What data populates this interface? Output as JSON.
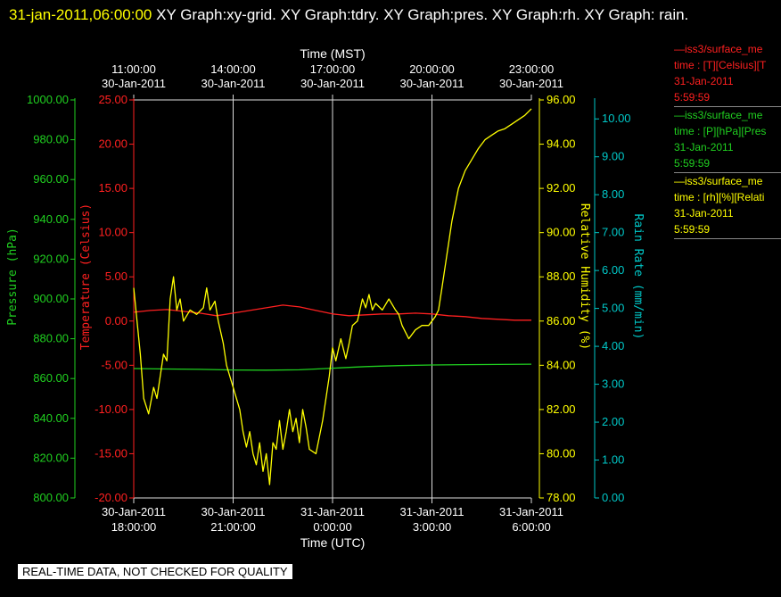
{
  "header": {
    "timestamp": "31-jan-2011,06:00:00",
    "text": "XY Graph:xy-grid.  XY Graph:tdry.  XY Graph:pres.  XY Graph:rh.  XY Graph: rain."
  },
  "legend": [
    {
      "line1": "—iss3/surface_me",
      "line2": "time : [T][Celsius][T",
      "line3": "31-Jan-2011",
      "line4": "5:59:59",
      "color": "#ff2020"
    },
    {
      "line1": "—iss3/surface_me",
      "line2": "time : [P][hPa][Pres",
      "line3": "31-Jan-2011",
      "line4": "5:59:59",
      "color": "#20d020"
    },
    {
      "line1": "—iss3/surface_me",
      "line2": "time : [rh][%][Relati",
      "line3": "31-Jan-2011",
      "line4": "5:59:59",
      "color": "#ffff00"
    }
  ],
  "notice": "REAL-TIME DATA, NOT CHECKED FOR QUALITY",
  "chart_data": {
    "type": "line",
    "top_axis": {
      "title": "Time (MST)",
      "ticks": [
        {
          "time": "11:00:00",
          "date": "30-Jan-2011"
        },
        {
          "time": "14:00:00",
          "date": "30-Jan-2011"
        },
        {
          "time": "17:00:00",
          "date": "30-Jan-2011"
        },
        {
          "time": "20:00:00",
          "date": "30-Jan-2011"
        },
        {
          "time": "23:00:00",
          "date": "30-Jan-2011"
        }
      ]
    },
    "bottom_axis": {
      "title": "Time (UTC)",
      "range_hours": [
        0,
        12
      ],
      "tick_hours": [
        0,
        3,
        6,
        9,
        12
      ],
      "ticks": [
        {
          "date": "30-Jan-2011",
          "time": "18:00:00"
        },
        {
          "date": "30-Jan-2011",
          "time": "21:00:00"
        },
        {
          "date": "31-Jan-2011",
          "time": "0:00:00"
        },
        {
          "date": "31-Jan-2011",
          "time": "3:00:00"
        },
        {
          "date": "31-Jan-2011",
          "time": "6:00:00"
        }
      ]
    },
    "axes": {
      "pressure": {
        "label": "Pressure (hPa)",
        "range": [
          800,
          1000
        ],
        "ticks": [
          "800.00",
          "820.00",
          "840.00",
          "860.00",
          "880.00",
          "900.00",
          "920.00",
          "940.00",
          "960.00",
          "980.00",
          "1000.00"
        ],
        "color": "#20d020"
      },
      "temperature": {
        "label": "Temperature (Celsius)",
        "range": [
          -20,
          25
        ],
        "ticks": [
          "-20.00",
          "-15.00",
          "-10.00",
          "-5.00",
          "0.00",
          "5.00",
          "10.00",
          "15.00",
          "20.00",
          "25.00"
        ],
        "color": "#ff2020"
      },
      "rh": {
        "label": "Relative Humidity (%)",
        "range": [
          78,
          96
        ],
        "ticks": [
          "78.00",
          "80.00",
          "82.00",
          "84.00",
          "86.00",
          "88.00",
          "90.00",
          "92.00",
          "94.00",
          "96.00"
        ],
        "color": "#ffff00"
      },
      "rain": {
        "label": "Rain Rate (mm/min)",
        "range": [
          0,
          10.5
        ],
        "ticks": [
          "0.00",
          "1.00",
          "2.00",
          "3.00",
          "4.00",
          "5.00",
          "6.00",
          "7.00",
          "8.00",
          "9.00",
          "10.00"
        ],
        "color": "#00c8c8"
      }
    },
    "series": [
      {
        "axis": "temperature",
        "color": "#ff2020",
        "points": [
          [
            0,
            1.0
          ],
          [
            0.5,
            1.2
          ],
          [
            1,
            1.3
          ],
          [
            1.5,
            1.1
          ],
          [
            2,
            0.9
          ],
          [
            2.5,
            0.6
          ],
          [
            3,
            0.9
          ],
          [
            3.5,
            1.2
          ],
          [
            4,
            1.5
          ],
          [
            4.5,
            1.8
          ],
          [
            5,
            1.6
          ],
          [
            5.5,
            1.2
          ],
          [
            6,
            0.8
          ],
          [
            6.5,
            0.6
          ],
          [
            7,
            0.7
          ],
          [
            7.5,
            0.8
          ],
          [
            8,
            0.8
          ],
          [
            8.5,
            0.9
          ],
          [
            9,
            0.8
          ],
          [
            9.5,
            0.6
          ],
          [
            10,
            0.5
          ],
          [
            10.5,
            0.3
          ],
          [
            11,
            0.2
          ],
          [
            11.5,
            0.1
          ],
          [
            12,
            0.1
          ]
        ]
      },
      {
        "axis": "pressure",
        "color": "#20d020",
        "points": [
          [
            0,
            865
          ],
          [
            1,
            864.8
          ],
          [
            2,
            864.6
          ],
          [
            3,
            864.3
          ],
          [
            4,
            864.2
          ],
          [
            5,
            864.4
          ],
          [
            6,
            865.2
          ],
          [
            7,
            866
          ],
          [
            8,
            866.5
          ],
          [
            9,
            866.8
          ],
          [
            10,
            867
          ],
          [
            11,
            867.1
          ],
          [
            12,
            867.2
          ]
        ]
      },
      {
        "axis": "rh",
        "color": "#ffff00",
        "points": [
          [
            0,
            87.5
          ],
          [
            0.1,
            86
          ],
          [
            0.2,
            84.5
          ],
          [
            0.3,
            82.5
          ],
          [
            0.45,
            81.8
          ],
          [
            0.6,
            83
          ],
          [
            0.7,
            82.5
          ],
          [
            0.8,
            83.5
          ],
          [
            0.9,
            84.5
          ],
          [
            1.0,
            84.2
          ],
          [
            1.1,
            87
          ],
          [
            1.2,
            88
          ],
          [
            1.3,
            86.5
          ],
          [
            1.4,
            87
          ],
          [
            1.5,
            86
          ],
          [
            1.7,
            86.5
          ],
          [
            1.9,
            86.3
          ],
          [
            2.1,
            86.6
          ],
          [
            2.2,
            87.5
          ],
          [
            2.3,
            86.5
          ],
          [
            2.45,
            86.9
          ],
          [
            2.55,
            86.0
          ],
          [
            2.7,
            85.0
          ],
          [
            2.8,
            84
          ],
          [
            3.0,
            83
          ],
          [
            3.2,
            82
          ],
          [
            3.3,
            81
          ],
          [
            3.4,
            80.3
          ],
          [
            3.5,
            81
          ],
          [
            3.6,
            80
          ],
          [
            3.7,
            79.5
          ],
          [
            3.8,
            80.5
          ],
          [
            3.9,
            79.2
          ],
          [
            4.0,
            80.0
          ],
          [
            4.1,
            78.6
          ],
          [
            4.2,
            80.5
          ],
          [
            4.3,
            80.2
          ],
          [
            4.4,
            81.5
          ],
          [
            4.5,
            80.2
          ],
          [
            4.6,
            81.0
          ],
          [
            4.7,
            82.0
          ],
          [
            4.8,
            81.0
          ],
          [
            4.9,
            81.6
          ],
          [
            5.0,
            80.5
          ],
          [
            5.1,
            82
          ],
          [
            5.2,
            81.2
          ],
          [
            5.3,
            80.2
          ],
          [
            5.5,
            80.0
          ],
          [
            5.7,
            81.5
          ],
          [
            5.8,
            82.5
          ],
          [
            5.9,
            83.5
          ],
          [
            6.0,
            84.8
          ],
          [
            6.1,
            84.2
          ],
          [
            6.25,
            85.2
          ],
          [
            6.4,
            84.3
          ],
          [
            6.5,
            85.0
          ],
          [
            6.6,
            85.8
          ],
          [
            6.75,
            86.0
          ],
          [
            6.9,
            87.0
          ],
          [
            7.0,
            86.6
          ],
          [
            7.1,
            87.2
          ],
          [
            7.2,
            86.5
          ],
          [
            7.3,
            86.8
          ],
          [
            7.5,
            86.5
          ],
          [
            7.7,
            87.0
          ],
          [
            7.9,
            86.5
          ],
          [
            8.0,
            86.3
          ],
          [
            8.1,
            85.8
          ],
          [
            8.3,
            85.2
          ],
          [
            8.5,
            85.6
          ],
          [
            8.7,
            85.8
          ],
          [
            8.9,
            85.8
          ],
          [
            9.1,
            86.2
          ],
          [
            9.2,
            86.5
          ],
          [
            9.3,
            87.5
          ],
          [
            9.4,
            88.5
          ],
          [
            9.5,
            89.5
          ],
          [
            9.6,
            90.5
          ],
          [
            9.8,
            92
          ],
          [
            10.0,
            92.8
          ],
          [
            10.2,
            93.3
          ],
          [
            10.4,
            93.8
          ],
          [
            10.6,
            94.2
          ],
          [
            10.8,
            94.4
          ],
          [
            11.0,
            94.6
          ],
          [
            11.2,
            94.7
          ],
          [
            11.4,
            94.9
          ],
          [
            11.6,
            95.1
          ],
          [
            11.8,
            95.3
          ],
          [
            12.0,
            95.6
          ]
        ]
      }
    ],
    "grid": true
  }
}
